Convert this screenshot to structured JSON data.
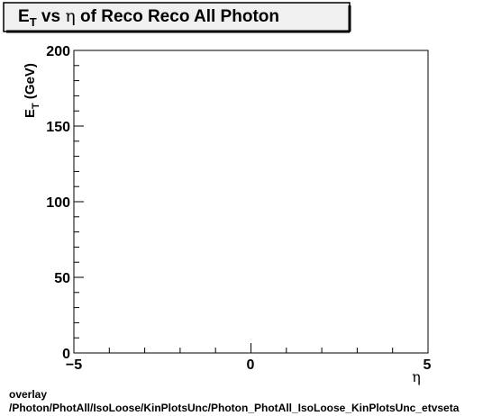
{
  "chart_data": {
    "type": "scatter",
    "title": {
      "prefix_main": "E",
      "prefix_sub": "T",
      "middle": " vs  ",
      "eta": "η",
      "suffix": " of Reco Reco All Photon"
    },
    "ylabel": {
      "main": "E",
      "sub": "T",
      "rest": "  (GeV)"
    },
    "xlabel": "η",
    "xlim": [
      -5,
      5
    ],
    "ylim": [
      0,
      200
    ],
    "x_tick_labels": [
      "−5",
      "0",
      "5"
    ],
    "y_tick_labels": [
      "0",
      "50",
      "100",
      "150",
      "200"
    ],
    "points": [],
    "grid": false
  },
  "footer": {
    "line1": "overlay",
    "line2": "/Photon/PhotAll/IsoLoose/KinPlotsUnc/Photon_PhotAll_IsoLoose_KinPlotsUnc_etvseta"
  }
}
